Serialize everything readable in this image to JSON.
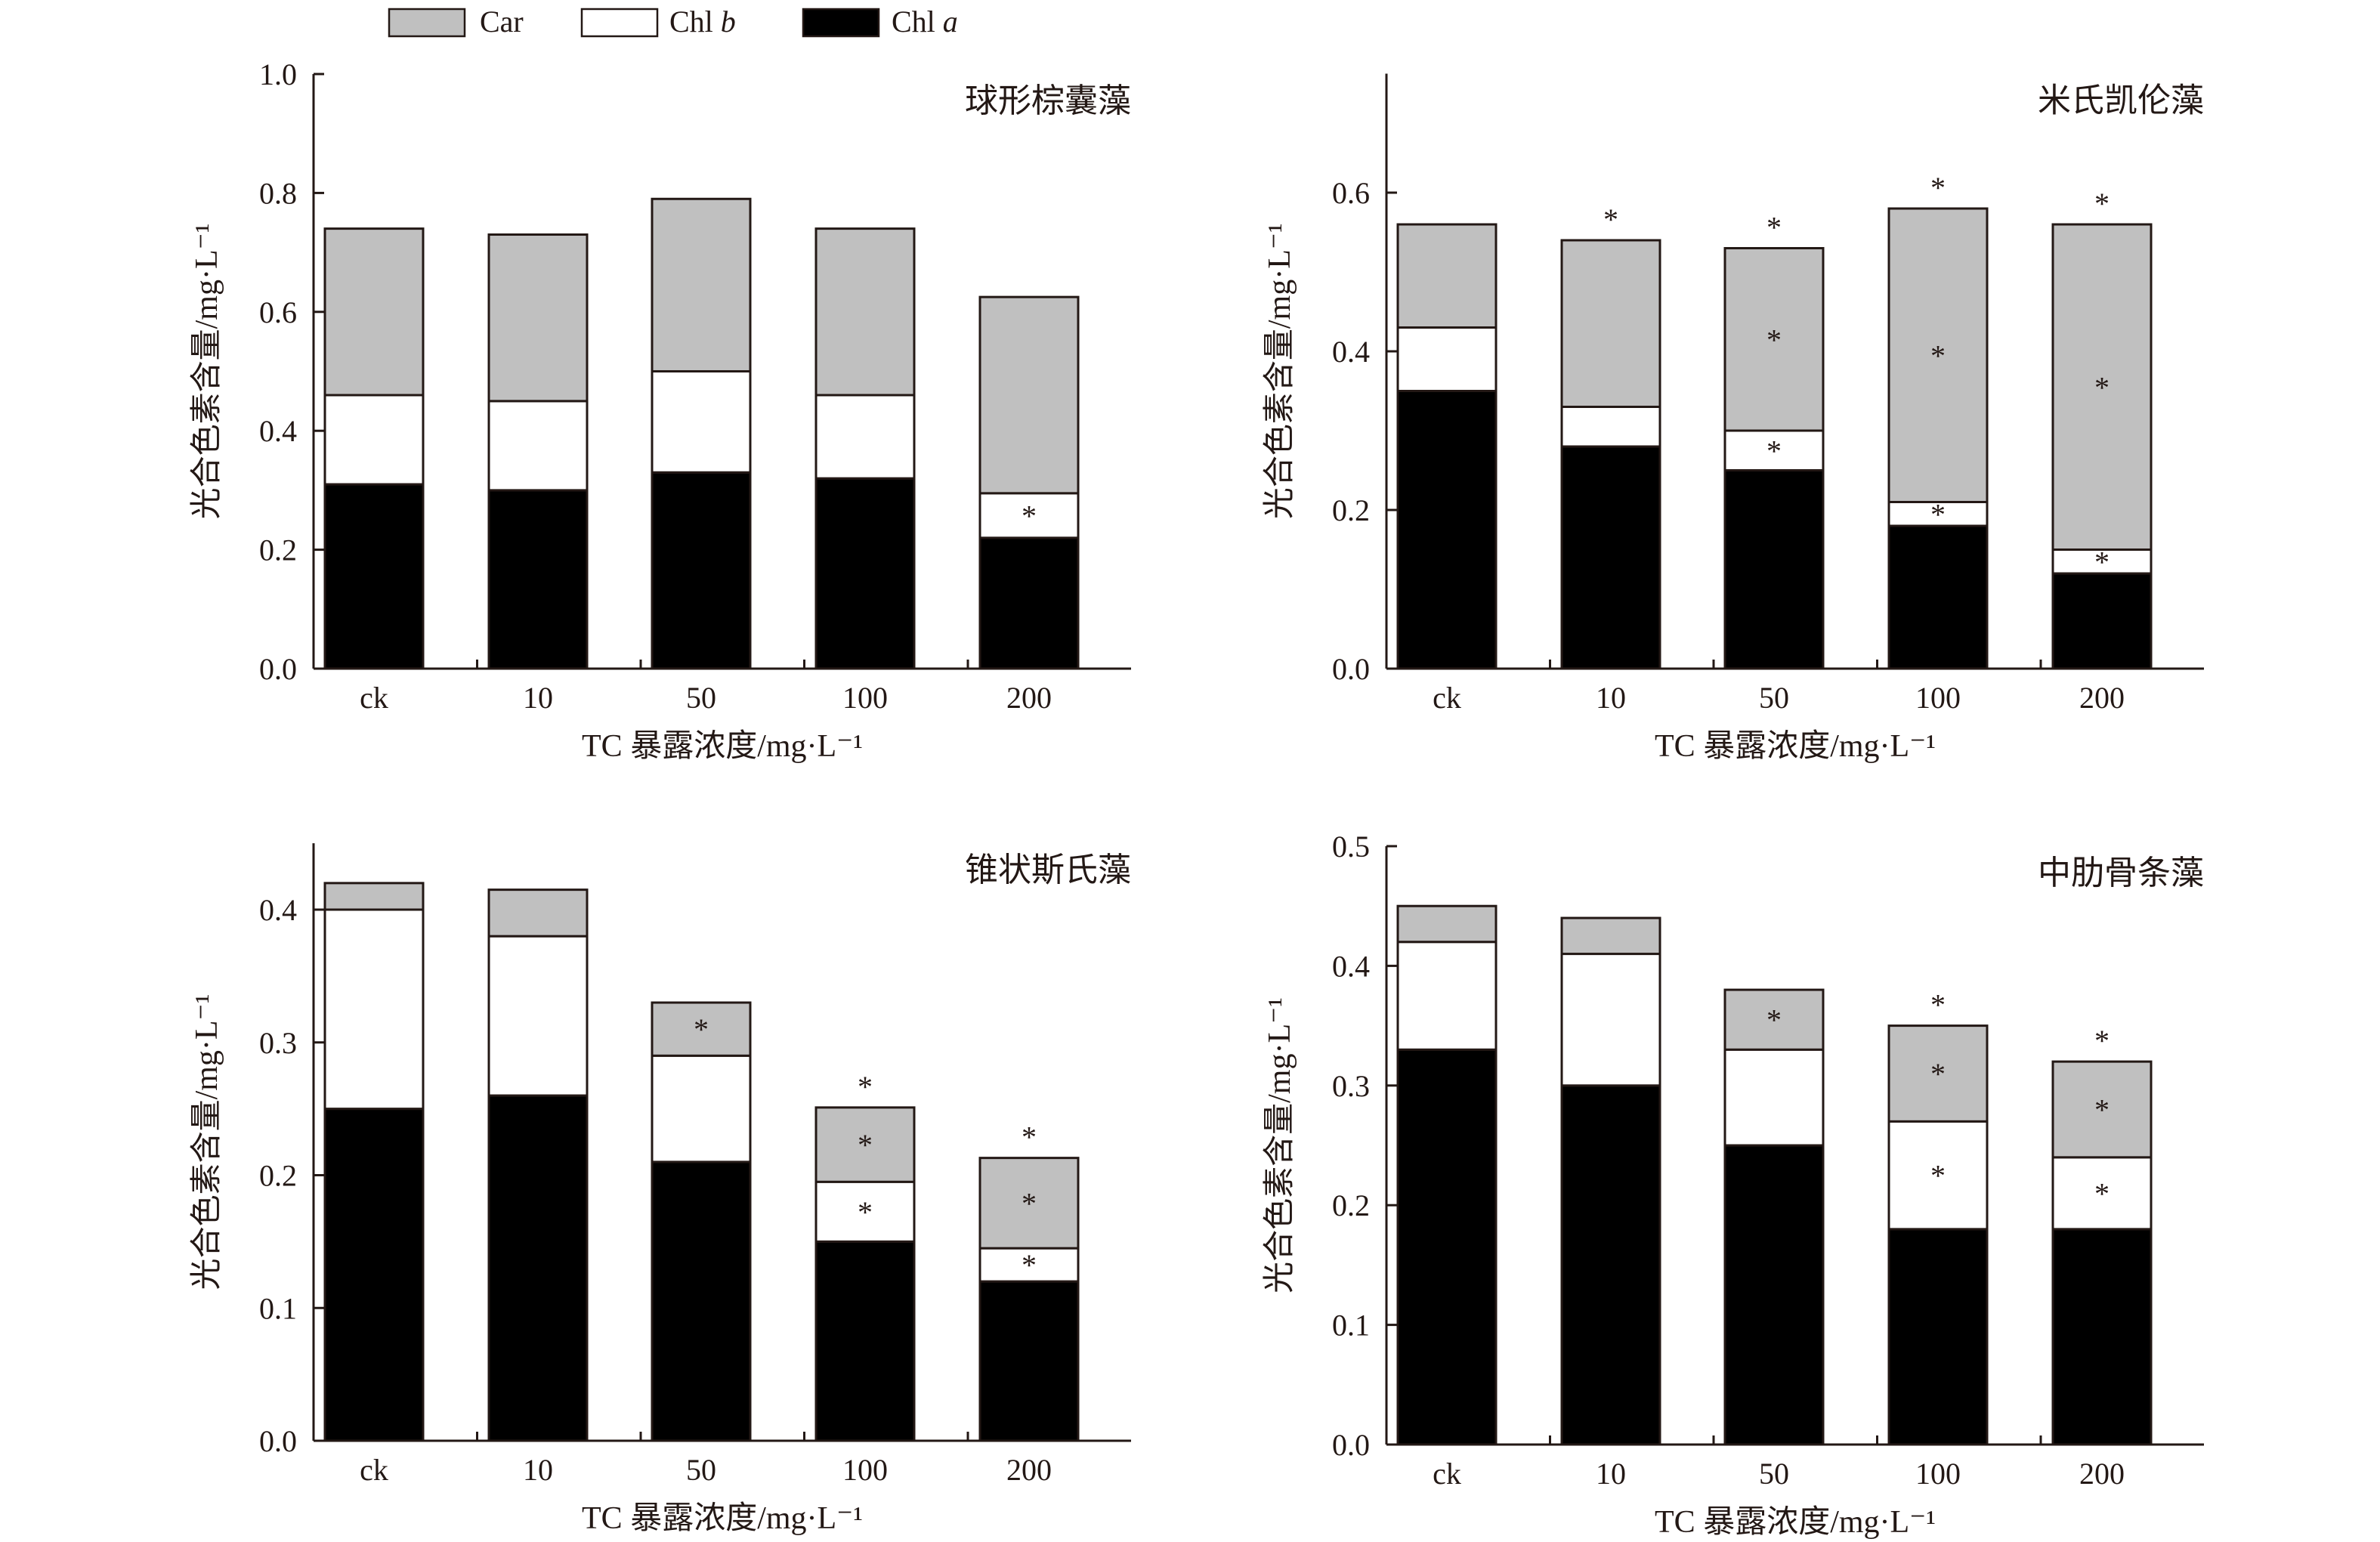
{
  "colors": {
    "Car": "#c0c0c0",
    "Chl b": "#ffffff",
    "Chl a": "#000000",
    "axis": "#231815"
  },
  "legend": [
    {
      "key": "Car",
      "main": "Car",
      "italic": ""
    },
    {
      "key": "Chl b",
      "main": "Chl ",
      "italic": "b"
    },
    {
      "key": "Chl a",
      "main": "Chl ",
      "italic": "a"
    }
  ],
  "chart_data": [
    {
      "type": "bar",
      "stacked": true,
      "title": "球形棕囊藻",
      "xlabel": "TC 暴露浓度/mg·L⁻¹",
      "ylabel": "光合色素含量/mg·L⁻¹",
      "categories": [
        "ck",
        "10",
        "50",
        "100",
        "200"
      ],
      "ylim": [
        0,
        1.0
      ],
      "yticks": [
        "0.0",
        "0.2",
        "0.4",
        "0.6",
        "0.8",
        "1.0"
      ],
      "series": [
        {
          "name": "Chl a",
          "values": [
            0.31,
            0.3,
            0.33,
            0.32,
            0.22
          ]
        },
        {
          "name": "Chl b",
          "values": [
            0.15,
            0.15,
            0.17,
            0.14,
            0.075
          ]
        },
        {
          "name": "Car",
          "values": [
            0.28,
            0.28,
            0.29,
            0.28,
            0.33
          ]
        }
      ],
      "significance": {
        "Chl a": [
          0,
          0,
          0,
          0,
          0
        ],
        "Chl b": [
          0,
          0,
          0,
          0,
          1
        ],
        "Car": [
          0,
          0,
          0,
          0,
          0
        ],
        "total": [
          0,
          0,
          0,
          0,
          0
        ]
      }
    },
    {
      "type": "bar",
      "stacked": true,
      "title": "米氏凯伦藻",
      "xlabel": "TC 暴露浓度/mg·L⁻¹",
      "ylabel": "光合色素含量/mg·L⁻¹",
      "categories": [
        "ck",
        "10",
        "50",
        "100",
        "200"
      ],
      "ylim": [
        0,
        0.75
      ],
      "yticks": [
        "0.0",
        "0.2",
        "0.4",
        "0.6"
      ],
      "series": [
        {
          "name": "Chl a",
          "values": [
            0.35,
            0.28,
            0.25,
            0.18,
            0.12
          ]
        },
        {
          "name": "Chl b",
          "values": [
            0.08,
            0.05,
            0.05,
            0.03,
            0.03
          ]
        },
        {
          "name": "Car",
          "values": [
            0.13,
            0.21,
            0.23,
            0.37,
            0.41
          ]
        }
      ],
      "significance": {
        "Chl a": [
          0,
          0,
          0,
          0,
          0
        ],
        "Chl b": [
          0,
          0,
          1,
          1,
          1
        ],
        "Car": [
          0,
          0,
          1,
          1,
          1
        ],
        "total": [
          0,
          1,
          1,
          1,
          1
        ]
      }
    },
    {
      "type": "bar",
      "stacked": true,
      "title": "锥状斯氏藻",
      "xlabel": "TC 暴露浓度/mg·L⁻¹",
      "ylabel": "光合色素含量/mg·L⁻¹",
      "categories": [
        "ck",
        "10",
        "50",
        "100",
        "200"
      ],
      "ylim": [
        0,
        0.45
      ],
      "yticks": [
        "0.0",
        "0.1",
        "0.2",
        "0.3",
        "0.4"
      ],
      "series": [
        {
          "name": "Chl a",
          "values": [
            0.25,
            0.26,
            0.21,
            0.15,
            0.12
          ]
        },
        {
          "name": "Chl b",
          "values": [
            0.15,
            0.12,
            0.08,
            0.045,
            0.025
          ]
        },
        {
          "name": "Car",
          "values": [
            0.02,
            0.035,
            0.04,
            0.056,
            0.068
          ]
        }
      ],
      "significance": {
        "Chl a": [
          0,
          0,
          0,
          0,
          0
        ],
        "Chl b": [
          0,
          0,
          0,
          1,
          1
        ],
        "Car": [
          0,
          0,
          1,
          1,
          1
        ],
        "total": [
          0,
          0,
          0,
          1,
          1
        ]
      }
    },
    {
      "type": "bar",
      "stacked": true,
      "title": "中肋骨条藻",
      "xlabel": "TC 暴露浓度/mg·L⁻¹",
      "ylabel": "光合色素含量/mg·L⁻¹",
      "categories": [
        "ck",
        "10",
        "50",
        "100",
        "200"
      ],
      "ylim": [
        0,
        0.5
      ],
      "yticks": [
        "0.0",
        "0.1",
        "0.2",
        "0.3",
        "0.4",
        "0.5"
      ],
      "series": [
        {
          "name": "Chl a",
          "values": [
            0.33,
            0.3,
            0.25,
            0.18,
            0.18
          ]
        },
        {
          "name": "Chl b",
          "values": [
            0.09,
            0.11,
            0.08,
            0.09,
            0.06
          ]
        },
        {
          "name": "Car",
          "values": [
            0.03,
            0.03,
            0.05,
            0.08,
            0.08
          ]
        }
      ],
      "significance": {
        "Chl a": [
          0,
          0,
          0,
          0,
          0
        ],
        "Chl b": [
          0,
          0,
          0,
          1,
          1
        ],
        "Car": [
          0,
          0,
          1,
          1,
          1
        ],
        "total": [
          0,
          0,
          0,
          1,
          1
        ]
      }
    }
  ]
}
